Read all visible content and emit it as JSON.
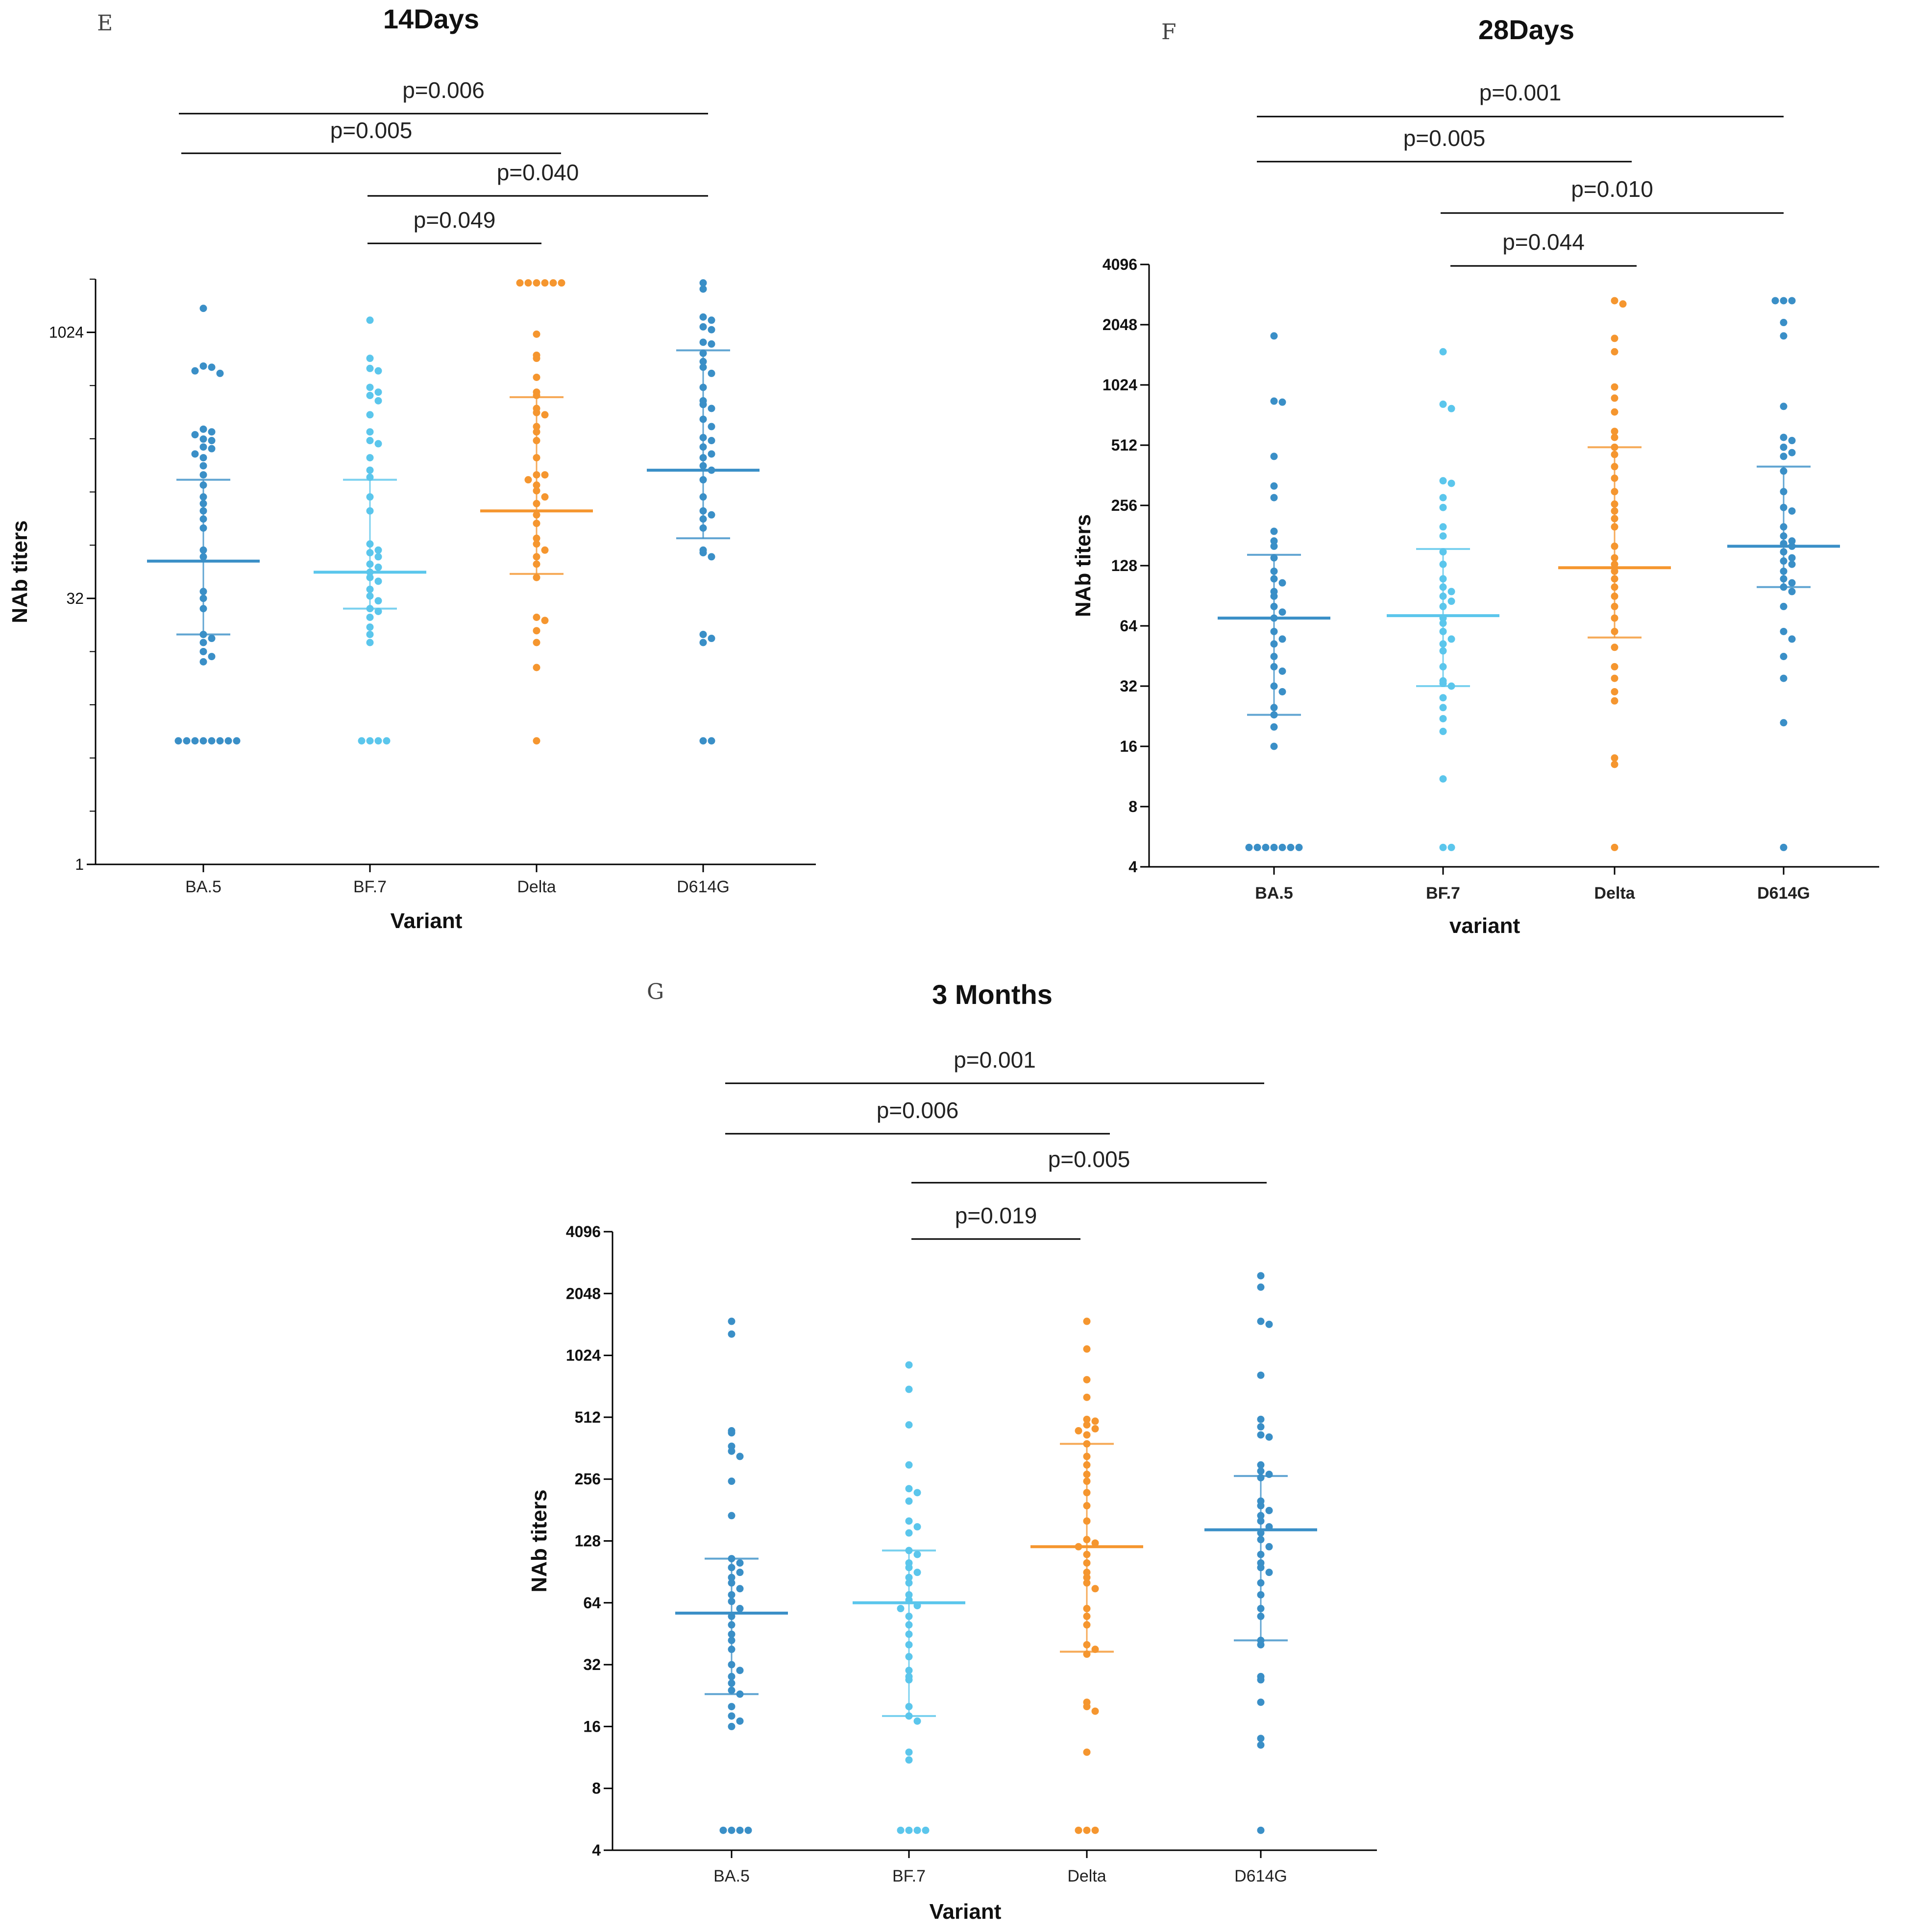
{
  "chart_data": [
    {
      "panel": "E",
      "type": "scatter",
      "title": "14Days",
      "xlabel": "Variant",
      "ylabel": "NAb titers",
      "y_scale": "log2",
      "ylim": [
        1,
        2048
      ],
      "y_ticks": [
        1,
        32,
        1024
      ],
      "categories": [
        "BA.5",
        "BF.7",
        "Delta",
        "D614G"
      ],
      "colors": [
        "#3a8fc7",
        "#5bc6ec",
        "#f5962f",
        "#3a8fc7"
      ],
      "series": [
        {
          "name": "BA.5",
          "mean": 52,
          "sd_range": [
            20,
            150
          ],
          "points": [
            1400,
            660,
            650,
            620,
            600,
            290,
            280,
            270,
            255,
            250,
            230,
            225,
            210,
            200,
            180,
            160,
            140,
            120,
            110,
            100,
            90,
            80,
            60,
            55,
            35,
            32,
            28,
            20,
            19,
            18,
            16,
            15,
            14,
            5,
            5,
            5,
            5,
            5,
            5,
            5,
            5
          ]
        },
        {
          "name": "BF.7",
          "mean": 45,
          "sd_range": [
            28,
            150
          ],
          "points": [
            1200,
            730,
            640,
            620,
            500,
            470,
            450,
            420,
            350,
            280,
            250,
            240,
            200,
            170,
            155,
            120,
            100,
            65,
            60,
            58,
            55,
            50,
            48,
            45,
            42,
            40,
            36,
            33,
            31,
            28,
            27,
            25,
            22,
            20,
            18,
            5,
            5,
            5,
            5
          ]
        },
        {
          "name": "Delta",
          "mean": 100,
          "sd_range": [
            44,
            440
          ],
          "points": [
            1950,
            1950,
            1950,
            1950,
            1950,
            1950,
            1000,
            760,
            730,
            570,
            470,
            450,
            380,
            360,
            350,
            300,
            280,
            250,
            200,
            160,
            160,
            150,
            140,
            130,
            120,
            110,
            95,
            85,
            70,
            65,
            60,
            55,
            50,
            42,
            25,
            24,
            21,
            18,
            13,
            5
          ]
        },
        {
          "name": "D614G",
          "mean": 170,
          "sd_range": [
            70,
            810
          ],
          "points": [
            1950,
            1800,
            1250,
            1200,
            1100,
            1060,
            900,
            880,
            780,
            700,
            650,
            600,
            500,
            420,
            400,
            380,
            330,
            300,
            260,
            250,
            230,
            210,
            200,
            180,
            170,
            150,
            120,
            100,
            95,
            90,
            80,
            60,
            58,
            55,
            20,
            19,
            18,
            5,
            5
          ]
        }
      ],
      "p_values": [
        {
          "label": "p=0.006",
          "pair": [
            "BA.5",
            "D614G"
          ]
        },
        {
          "label": "p=0.005",
          "pair": [
            "BA.5",
            "Delta"
          ]
        },
        {
          "label": "p=0.040",
          "pair": [
            "BF.7",
            "D614G"
          ]
        },
        {
          "label": "p=0.049",
          "pair": [
            "BF.7",
            "Delta"
          ]
        }
      ]
    },
    {
      "panel": "F",
      "type": "scatter",
      "title": "28Days",
      "xlabel": "variant",
      "ylabel": "NAb titers",
      "y_scale": "log2",
      "ylim": [
        4,
        4096
      ],
      "y_ticks": [
        4,
        8,
        16,
        32,
        64,
        128,
        256,
        512,
        1024,
        2048,
        4096
      ],
      "categories": [
        "BA.5",
        "BF.7",
        "Delta",
        "D614G"
      ],
      "colors": [
        "#3a8fc7",
        "#5bc6ec",
        "#f5962f",
        "#3a8fc7"
      ],
      "series": [
        {
          "name": "BA.5",
          "mean": 70,
          "sd_range": [
            23,
            145
          ],
          "points": [
            1800,
            850,
            840,
            450,
            320,
            280,
            190,
            170,
            160,
            140,
            120,
            110,
            105,
            95,
            90,
            80,
            75,
            70,
            60,
            55,
            52,
            45,
            40,
            38,
            32,
            30,
            25,
            23,
            20,
            16,
            5,
            5,
            5,
            5,
            5,
            5,
            5
          ]
        },
        {
          "name": "BF.7",
          "mean": 72,
          "sd_range": [
            32,
            155
          ],
          "points": [
            1500,
            820,
            780,
            340,
            330,
            280,
            250,
            200,
            180,
            150,
            130,
            110,
            100,
            95,
            90,
            85,
            80,
            70,
            66,
            60,
            55,
            52,
            48,
            40,
            34,
            33,
            32,
            28,
            25,
            22,
            19,
            11,
            5,
            5
          ]
        },
        {
          "name": "Delta",
          "mean": 125,
          "sd_range": [
            56,
            500
          ],
          "points": [
            2700,
            2600,
            1750,
            1500,
            1000,
            880,
            750,
            600,
            560,
            500,
            460,
            400,
            350,
            300,
            260,
            240,
            220,
            200,
            160,
            140,
            130,
            120,
            110,
            100,
            90,
            80,
            70,
            60,
            50,
            40,
            35,
            30,
            27,
            14,
            13,
            5
          ]
        },
        {
          "name": "D614G",
          "mean": 160,
          "sd_range": [
            100,
            400
          ],
          "points": [
            2700,
            2700,
            2700,
            2100,
            1800,
            800,
            560,
            540,
            500,
            470,
            450,
            380,
            300,
            250,
            240,
            200,
            180,
            170,
            165,
            160,
            150,
            140,
            135,
            130,
            120,
            110,
            105,
            100,
            95,
            80,
            60,
            55,
            45,
            35,
            21,
            5
          ]
        }
      ],
      "p_values": [
        {
          "label": "p=0.001",
          "pair": [
            "BA.5",
            "D614G"
          ]
        },
        {
          "label": "p=0.005",
          "pair": [
            "BA.5",
            "Delta"
          ]
        },
        {
          "label": "p=0.010",
          "pair": [
            "BF.7",
            "D614G"
          ]
        },
        {
          "label": "p=0.044",
          "pair": [
            "BF.7",
            "Delta"
          ]
        }
      ]
    },
    {
      "panel": "G",
      "type": "scatter",
      "title": "3 Months",
      "xlabel": "Variant",
      "ylabel": "NAb titers",
      "y_scale": "log2",
      "ylim": [
        4,
        4096
      ],
      "y_ticks": [
        4,
        8,
        16,
        32,
        64,
        128,
        256,
        512,
        1024,
        2048,
        4096
      ],
      "categories": [
        "BA.5",
        "BF.7",
        "Delta",
        "D614G"
      ],
      "colors": [
        "#3a8fc7",
        "#5bc6ec",
        "#f5962f",
        "#3a8fc7"
      ],
      "series": [
        {
          "name": "BA.5",
          "mean": 57,
          "sd_range": [
            23,
            105
          ],
          "points": [
            1500,
            1300,
            440,
            430,
            370,
            350,
            330,
            250,
            170,
            105,
            100,
            95,
            90,
            85,
            80,
            75,
            70,
            65,
            60,
            55,
            50,
            45,
            42,
            38,
            32,
            30,
            28,
            26,
            24,
            23,
            20,
            18,
            17,
            16,
            5,
            5,
            5,
            5
          ]
        },
        {
          "name": "BF.7",
          "mean": 64,
          "sd_range": [
            18,
            115
          ],
          "points": [
            920,
            700,
            470,
            300,
            230,
            220,
            200,
            160,
            150,
            140,
            115,
            110,
            100,
            95,
            90,
            85,
            80,
            70,
            66,
            62,
            60,
            55,
            50,
            45,
            40,
            35,
            30,
            28,
            27,
            20,
            18,
            17,
            12,
            11,
            5,
            5,
            5,
            5
          ]
        },
        {
          "name": "Delta",
          "mean": 120,
          "sd_range": [
            37,
            380
          ],
          "points": [
            1500,
            1100,
            780,
            640,
            500,
            490,
            470,
            450,
            440,
            420,
            380,
            330,
            300,
            270,
            250,
            220,
            190,
            160,
            130,
            125,
            120,
            110,
            100,
            90,
            85,
            80,
            75,
            60,
            55,
            50,
            40,
            38,
            36,
            21,
            20,
            19,
            12,
            5,
            5,
            5
          ]
        },
        {
          "name": "D614G",
          "mean": 145,
          "sd_range": [
            42,
            265
          ],
          "points": [
            2500,
            2200,
            1500,
            1450,
            820,
            500,
            460,
            420,
            410,
            300,
            280,
            270,
            260,
            200,
            190,
            180,
            170,
            160,
            150,
            140,
            130,
            120,
            110,
            100,
            95,
            90,
            80,
            70,
            60,
            55,
            42,
            40,
            28,
            27,
            21,
            14,
            13,
            5
          ]
        }
      ],
      "p_values": [
        {
          "label": "p=0.001",
          "pair": [
            "BA.5",
            "D614G"
          ]
        },
        {
          "label": "p=0.006",
          "pair": [
            "BA.5",
            "Delta"
          ]
        },
        {
          "label": "p=0.005",
          "pair": [
            "BF.7",
            "D614G"
          ]
        },
        {
          "label": "p=0.019",
          "pair": [
            "BF.7",
            "Delta"
          ]
        }
      ]
    }
  ]
}
